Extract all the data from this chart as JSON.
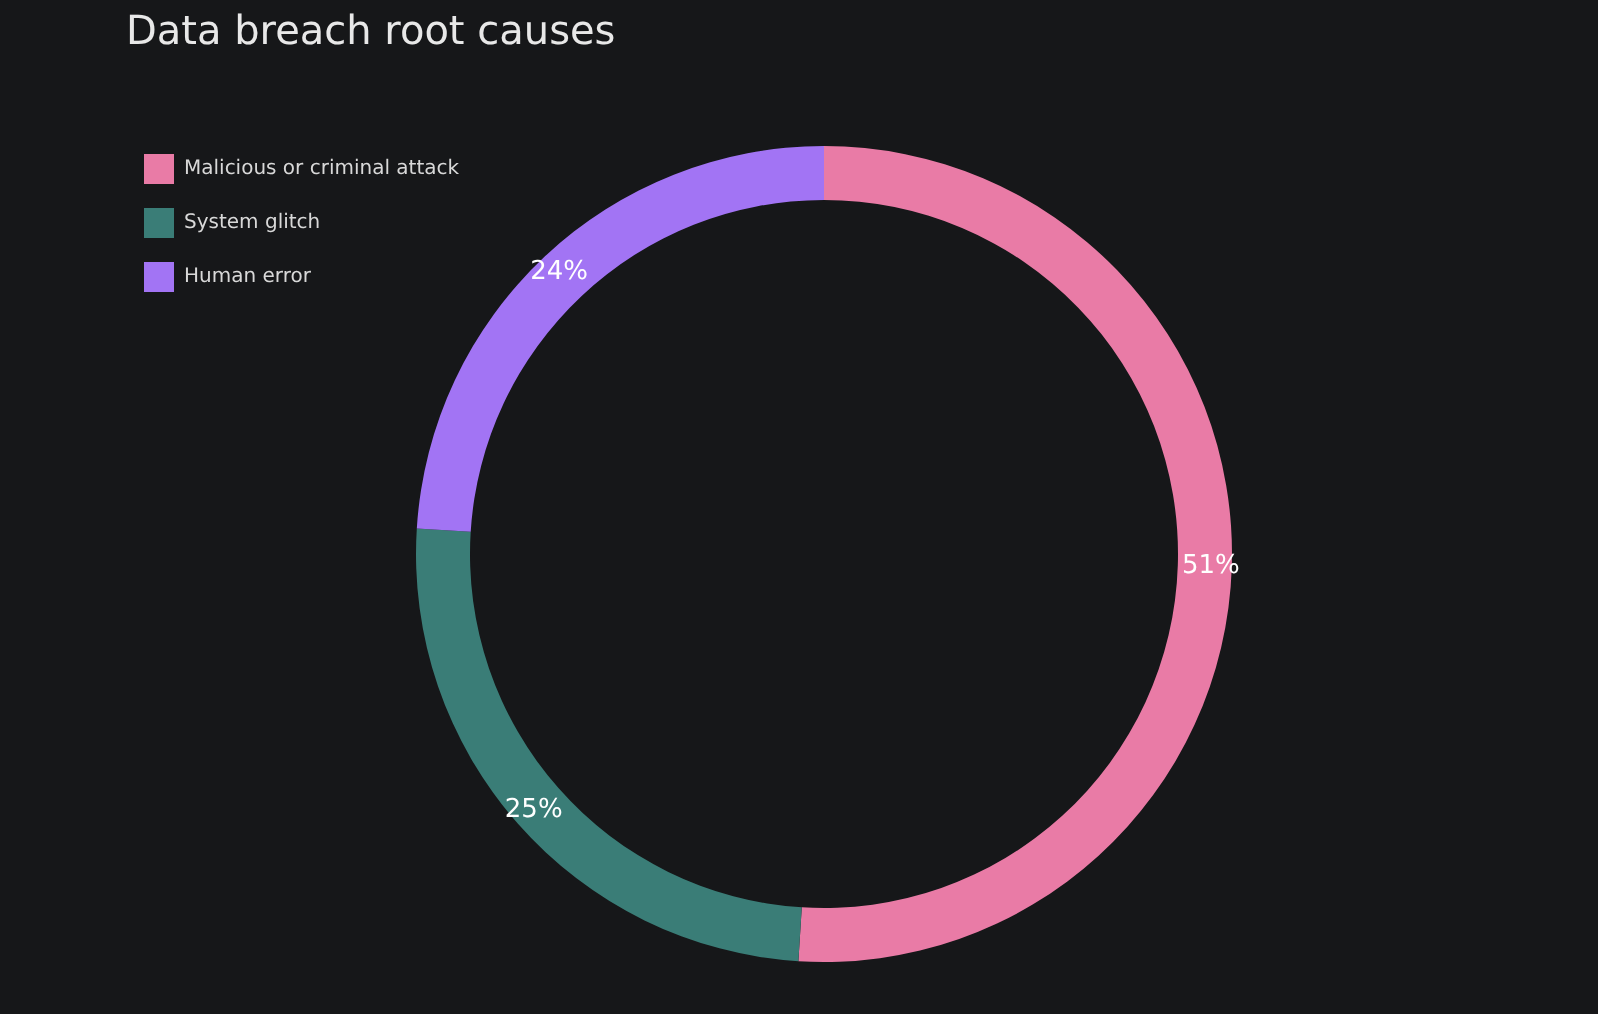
{
  "chart_data": {
    "type": "donut",
    "title": "Data breach root causes",
    "categories": [
      "Malicious or criminal attack",
      "System glitch",
      "Human error"
    ],
    "values": [
      51,
      25,
      24
    ],
    "colors": [
      "#e97ba6",
      "#3a7d77",
      "#a274f4"
    ],
    "value_labels": [
      "51%",
      "25%",
      "24%"
    ],
    "legend": "top left"
  }
}
